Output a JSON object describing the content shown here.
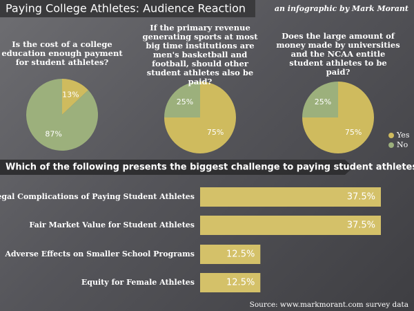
{
  "header": {
    "title": "Paying College Athletes: Audience Reaction",
    "byline": "an infographic by Mark Morant"
  },
  "pie_legend": {
    "categories": [
      "Yes",
      "No"
    ],
    "colors": [
      "#cfbb5e",
      "#9cb07c"
    ]
  },
  "source": "Source: www.markmorant.com survey data",
  "chart_data": [
    {
      "type": "pie",
      "title": "Is the cost of a college education enough payment for student athletes?",
      "values": [
        13,
        87
      ],
      "value_labels": [
        "13%",
        "87%"
      ]
    },
    {
      "type": "pie",
      "title": "If the primary revenue generating sports at most big time institutions are men's basketball and football, should other student athletes also be paid?",
      "values": [
        75,
        25
      ],
      "value_labels": [
        "75%",
        "25%"
      ]
    },
    {
      "type": "pie",
      "title": "Does the large amount of money made by universities and the NCAA entitle student athletes to be paid?",
      "values": [
        75,
        25
      ],
      "value_labels": [
        "75%",
        "25%"
      ]
    },
    {
      "type": "bar",
      "orientation": "horizontal",
      "title": "Which of the following presents the biggest challenge to paying student athletes?",
      "categories": [
        "Legal Complications of Paying Student Athletes",
        "Fair Market Value for Student Athletes",
        "Adverse Effects on Smaller School Programs",
        "Equity for Female Athletes"
      ],
      "values": [
        37.5,
        37.5,
        12.5,
        12.5
      ],
      "value_labels": [
        "37.5%",
        "37.5%",
        "12.5%",
        "12.5%"
      ],
      "color": "#d4c169"
    }
  ]
}
